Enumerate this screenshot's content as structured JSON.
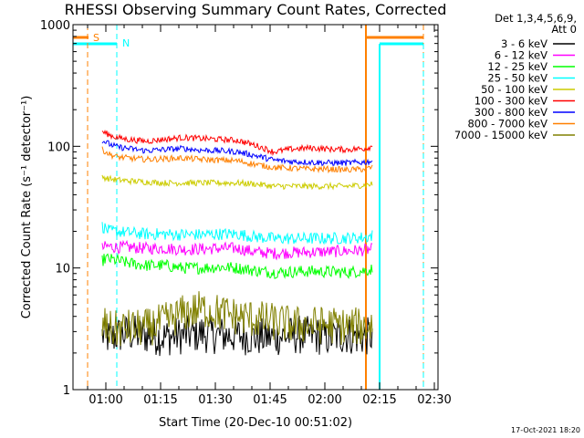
{
  "chart_data": {
    "type": "line",
    "title": "RHESSI Observing Summary Count Rates, Corrected",
    "xlabel": "Start Time (20-Dec-10 00:51:02)",
    "ylabel": "Corrected Count Rate (s⁻¹ detector⁻¹)",
    "yscale": "log",
    "ylim": [
      1,
      1000
    ],
    "xlim_minutes_from_start": [
      0,
      100
    ],
    "y_ticks": [
      {
        "value": 1,
        "label": "1"
      },
      {
        "value": 10,
        "label": "10"
      },
      {
        "value": 100,
        "label": "100"
      },
      {
        "value": 1000,
        "label": "1000"
      }
    ],
    "x_ticks": [
      {
        "minute": 9,
        "label": "01:00"
      },
      {
        "minute": 24,
        "label": "01:15"
      },
      {
        "minute": 39,
        "label": "01:30"
      },
      {
        "minute": 54,
        "label": "01:45"
      },
      {
        "minute": 69,
        "label": "02:00"
      },
      {
        "minute": 84,
        "label": "02:15"
      },
      {
        "minute": 99,
        "label": "02:30"
      }
    ],
    "legend_header": [
      "Det 1,3,4,5,6,9,",
      "Att 0"
    ],
    "legend_position": "right",
    "grid": false,
    "series": [
      {
        "name": "3 - 6 keV",
        "color": "#000000",
        "x": [
          8,
          9,
          10,
          12,
          15,
          20,
          25,
          30,
          35,
          40,
          45,
          50,
          55,
          60,
          65,
          70,
          75,
          80,
          82
        ],
        "y": [
          2.8,
          2.8,
          2.6,
          2.8,
          2.9,
          2.8,
          2.7,
          2.8,
          2.9,
          2.8,
          2.8,
          2.7,
          2.7,
          2.8,
          2.8,
          2.7,
          2.8,
          2.7,
          2.8
        ]
      },
      {
        "name": "6 - 12 keV",
        "color": "#ff00ff",
        "x": [
          8,
          9,
          10,
          12,
          15,
          20,
          25,
          30,
          35,
          40,
          45,
          50,
          55,
          60,
          65,
          70,
          75,
          80,
          82
        ],
        "y": [
          14.5,
          15,
          15,
          14.8,
          14.8,
          14.5,
          14.5,
          14.2,
          14.3,
          14.5,
          14.5,
          13.5,
          13.2,
          13.4,
          13.5,
          13.6,
          13.8,
          14,
          14.2
        ]
      },
      {
        "name": "12 - 25 keV",
        "color": "#00ff00",
        "x": [
          8,
          9,
          10,
          12,
          15,
          20,
          25,
          30,
          35,
          40,
          45,
          50,
          55,
          60,
          65,
          70,
          75,
          80,
          82
        ],
        "y": [
          11.5,
          12,
          11.8,
          11.5,
          11,
          10.5,
          10.5,
          10,
          10,
          10.2,
          10,
          9.5,
          9.2,
          9.3,
          9.4,
          9.3,
          9.2,
          9.5,
          9.8
        ]
      },
      {
        "name": "25 - 50 keV",
        "color": "#00ffff",
        "x": [
          8,
          9,
          10,
          12,
          15,
          20,
          25,
          30,
          35,
          40,
          45,
          50,
          55,
          60,
          65,
          70,
          75,
          80,
          82
        ],
        "y": [
          22,
          21,
          20,
          20,
          19.5,
          19,
          19,
          18.8,
          18.8,
          19,
          19,
          18,
          17.5,
          17.4,
          17.5,
          17.5,
          17.6,
          17.8,
          18.5
        ]
      },
      {
        "name": "50 - 100 keV",
        "color": "#cccc00",
        "x": [
          8,
          9,
          10,
          12,
          15,
          20,
          25,
          30,
          35,
          40,
          45,
          50,
          55,
          60,
          65,
          70,
          75,
          80,
          82
        ],
        "y": [
          56,
          55,
          54,
          53,
          52,
          51,
          50,
          50,
          50,
          50,
          50,
          49,
          47,
          47,
          47,
          47,
          47,
          48,
          49
        ]
      },
      {
        "name": "100 - 300 keV",
        "color": "#ff0000",
        "x": [
          8,
          9,
          10,
          12,
          15,
          20,
          25,
          30,
          35,
          40,
          45,
          50,
          55,
          60,
          65,
          70,
          75,
          80,
          82
        ],
        "y": [
          132,
          128,
          124,
          118,
          114,
          110,
          114,
          118,
          116,
          114,
          112,
          102,
          90,
          95,
          97,
          95,
          94,
          96,
          100
        ]
      },
      {
        "name": "300 - 800 keV",
        "color": "#0000ff",
        "x": [
          8,
          9,
          10,
          12,
          15,
          20,
          25,
          30,
          35,
          40,
          45,
          50,
          55,
          60,
          65,
          70,
          75,
          80,
          82
        ],
        "y": [
          112,
          108,
          104,
          99,
          96,
          92,
          94,
          96,
          93,
          92,
          90,
          84,
          77,
          75,
          74,
          73,
          73,
          74,
          76
        ]
      },
      {
        "name": "800 - 7000 keV",
        "color": "#ff8000",
        "x": [
          8,
          9,
          10,
          12,
          15,
          20,
          25,
          30,
          35,
          40,
          45,
          50,
          55,
          60,
          65,
          70,
          75,
          80,
          82
        ],
        "y": [
          94,
          90,
          86,
          82,
          80,
          78,
          79,
          80,
          78,
          77,
          76,
          71,
          67,
          66,
          65,
          65,
          64,
          65,
          67
        ]
      },
      {
        "name": "7000 - 15000 keV",
        "color": "#808000",
        "x": [
          8,
          9,
          10,
          12,
          15,
          20,
          25,
          30,
          35,
          40,
          45,
          50,
          55,
          60,
          65,
          70,
          75,
          80,
          82
        ],
        "y": [
          3.4,
          3.3,
          3.1,
          3.1,
          3.2,
          3.2,
          3.6,
          4.2,
          4.6,
          4.3,
          4.0,
          3.8,
          3.6,
          3.4,
          3.4,
          3.4,
          3.3,
          3.3,
          3.4
        ]
      }
    ],
    "markers": [
      {
        "label": "S",
        "color": "#ff8000"
      },
      {
        "label": "N",
        "color": "#00ffff"
      }
    ]
  },
  "timestamp": "17-Oct-2021 18:20"
}
